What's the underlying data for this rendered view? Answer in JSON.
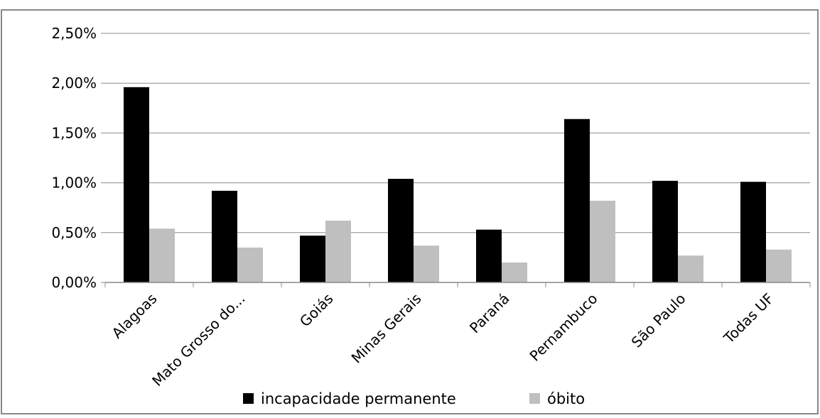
{
  "chart_data": {
    "type": "bar",
    "title": "",
    "xlabel": "",
    "ylabel": "",
    "categories": [
      "Alagoas",
      "Mato Grosso do...",
      "Goiás",
      "Minas Gerais",
      "Paraná",
      "Pernambuco",
      "São Paulo",
      "Todas UF"
    ],
    "series": [
      {
        "name": "incapacidade permanente",
        "color": "#000000",
        "values": [
          1.96,
          0.92,
          0.47,
          1.04,
          0.53,
          1.64,
          1.02,
          1.01
        ]
      },
      {
        "name": "óbito",
        "color": "#bfbfbf",
        "values": [
          0.54,
          0.35,
          0.62,
          0.37,
          0.2,
          0.82,
          0.27,
          0.33
        ]
      }
    ],
    "ylim": [
      0,
      2.5
    ],
    "yticks": [
      0,
      0.5,
      1.0,
      1.5,
      2.0,
      2.5
    ],
    "ytick_labels": [
      "0,00%",
      "0,50%",
      "1,00%",
      "1,50%",
      "2,00%",
      "2,50%"
    ],
    "ytick_unit": "%",
    "grid": true,
    "legend_position": "bottom"
  }
}
